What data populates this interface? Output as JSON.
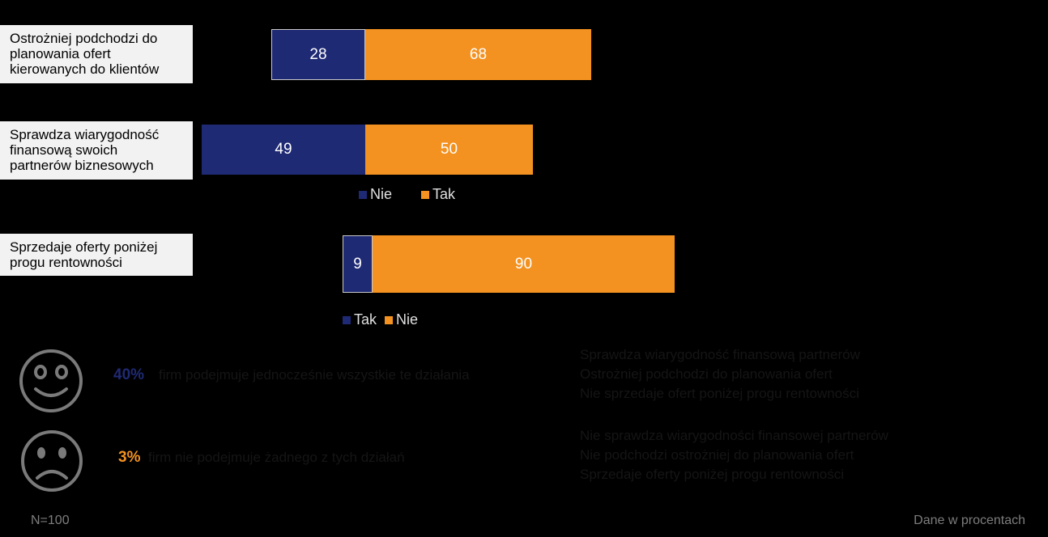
{
  "colors": {
    "nie_dark": "#1f2a74",
    "tak_orange": "#f39220",
    "label_bg": "#f2f2f2"
  },
  "chart_data": [
    {
      "type": "bar",
      "orientation": "horizontal-stacked",
      "category_lines": [
        "Ostrożniej podchodzi do",
        "planowania ofert",
        "kierowanych do klientów"
      ],
      "series": [
        {
          "name": "Nie",
          "value": 28
        },
        {
          "name": "Tak",
          "value": 68
        }
      ]
    },
    {
      "type": "bar",
      "orientation": "horizontal-stacked",
      "category_lines": [
        "Sprawdza wiarygodność",
        "finansową swoich",
        "partnerów biznesowych"
      ],
      "series": [
        {
          "name": "Nie",
          "value": 49
        },
        {
          "name": "Tak",
          "value": 50
        }
      ],
      "legend": [
        "Nie",
        "Tak"
      ]
    },
    {
      "type": "bar",
      "orientation": "horizontal-stacked",
      "category_lines": [
        "Sprzedaje oferty poniżej",
        "progu rentowności"
      ],
      "series": [
        {
          "name": "Tak",
          "value": 9
        },
        {
          "name": "Nie",
          "value": 90
        }
      ],
      "legend": [
        "Tak",
        "Nie"
      ]
    }
  ],
  "summary": {
    "happy": {
      "pct": "40%",
      "text": "firm podejmuje jednocześnie wszystkie te działania"
    },
    "sad": {
      "pct": "3%",
      "text": "firm nie podejmuje żadnego z tych działań"
    },
    "note1_lines": [
      "Sprawdza wiarygodność finansową partnerów",
      "Ostrożniej podchodzi do planowania ofert",
      "Nie sprzedaje ofert poniżej progu rentowności"
    ],
    "note2_lines": [
      "Nie sprawdza wiarygodności finansowej partnerów",
      "Nie podchodzi ostrożniej do planowania ofert",
      "Sprzedaje oferty poniżej progu rentowności"
    ]
  },
  "footer": {
    "n": "N=100",
    "unit": "Dane w procentach"
  }
}
